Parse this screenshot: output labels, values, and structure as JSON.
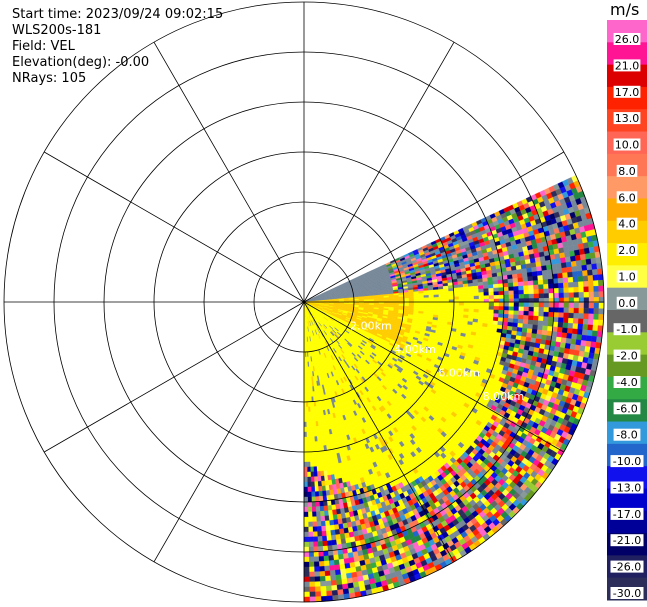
{
  "info": {
    "start_time": "Start time: 2023/09/24 09:02:15",
    "instrument": "WLS200s-181",
    "field": "Field: VEL",
    "elevation": "Elevation(deg): -0.00",
    "nrays": "NRays: 105"
  },
  "colorbar": {
    "unit": "m/s",
    "ticks": [
      "26.0",
      "21.0",
      "17.0",
      "13.0",
      "10.0",
      "8.0",
      "6.0",
      "4.0",
      "2.0",
      "1.0",
      "0.0",
      "-1.0",
      "-2.0",
      "-4.0",
      "-6.0",
      "-8.0",
      "-10.0",
      "-13.0",
      "-17.0",
      "-21.0",
      "-26.0",
      "-30.0"
    ],
    "colors": [
      "#ff66cc",
      "#ff1493",
      "#dd0000",
      "#ff2200",
      "#ff4422",
      "#ff6655",
      "#ff7755",
      "#ff9966",
      "#ffaa00",
      "#ffcc00",
      "#ffee00",
      "#ffff44",
      "#889999",
      "#666666",
      "#99cc33",
      "#669922",
      "#33aa44",
      "#228844",
      "#3399dd",
      "#2266cc",
      "#1111ee",
      "#0000cc",
      "#000099",
      "#000066",
      "#202060",
      "#2d2d5a"
    ]
  },
  "chart_data": {
    "type": "ppi-polar",
    "field": "VEL",
    "unit": "m/s",
    "range_rings_km": [
      1,
      2,
      3,
      4,
      5,
      6
    ],
    "ring_labels": [
      "2.00km",
      "4.00km",
      "6.00km",
      "8.00km"
    ],
    "azimuth_lines_deg": [
      0,
      30,
      60,
      90,
      120,
      150,
      180,
      210,
      240,
      270,
      300,
      330
    ],
    "scan_sector_deg": [
      65,
      180
    ],
    "colorbar_range": [
      -30,
      26
    ],
    "near_field_value_ms": 4.0,
    "colors": {
      "near_yellow": "#ffff00",
      "near_gold": "#ffcc00",
      "clutter_gray": "#778899"
    }
  }
}
